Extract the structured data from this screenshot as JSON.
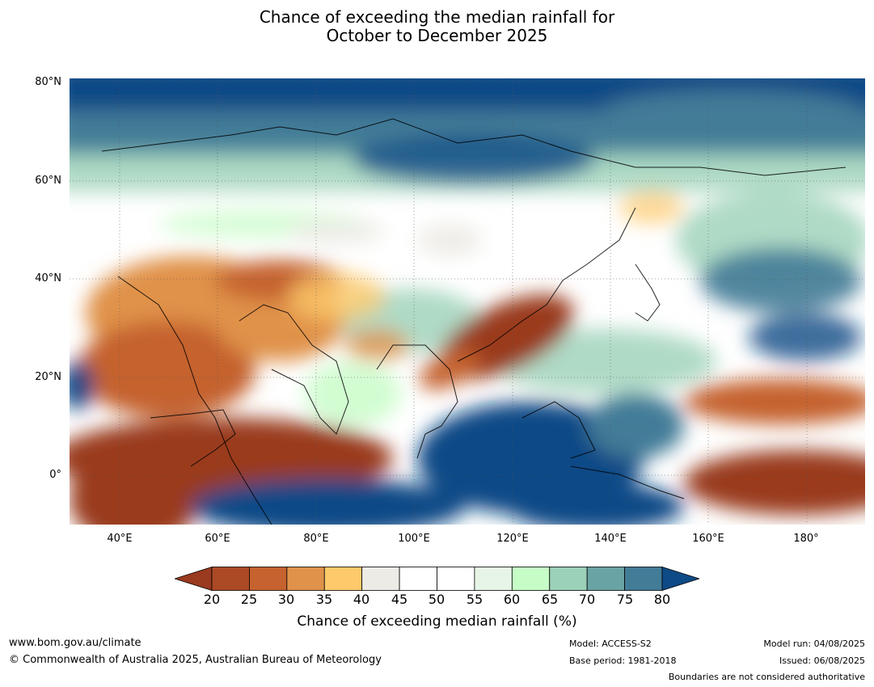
{
  "title": {
    "line1": "Chance of exceeding the median rainfall for",
    "line2": "October to December 2025"
  },
  "map": {
    "lat_labels": [
      "80°N",
      "60°N",
      "40°N",
      "20°N",
      "0°"
    ],
    "lon_labels": [
      "40°E",
      "60°E",
      "80°E",
      "100°E",
      "120°E",
      "140°E",
      "160°E",
      "180°"
    ],
    "extent": {
      "lon": [
        30,
        192
      ],
      "lat": [
        -10,
        80
      ]
    }
  },
  "colorbar": {
    "ticks": [
      "20",
      "25",
      "30",
      "35",
      "40",
      "45",
      "50",
      "55",
      "60",
      "65",
      "70",
      "75",
      "80"
    ],
    "colors": [
      "#9a3a1e",
      "#ac4a25",
      "#c5622f",
      "#e0924a",
      "#fdc96a",
      "#ecebe6",
      "#ffffff",
      "#ffffff",
      "#e7f5e6",
      "#c6fcc6",
      "#9bd1b8",
      "#6aa3a3",
      "#437c97",
      "#0e4a86"
    ],
    "label": "Chance of exceeding median rainfall (%)"
  },
  "footer": {
    "url": "www.bom.gov.au/climate",
    "copyright": "© Commonwealth of Australia 2025, Australian Bureau of Meteorology",
    "model": "Model: ACCESS-S2",
    "base_period": "Base period: 1981-2018",
    "model_run": "Model run: 04/08/2025",
    "issued": "Issued: 06/08/2025",
    "disclaimer": "Boundaries are not considered authoritative"
  }
}
